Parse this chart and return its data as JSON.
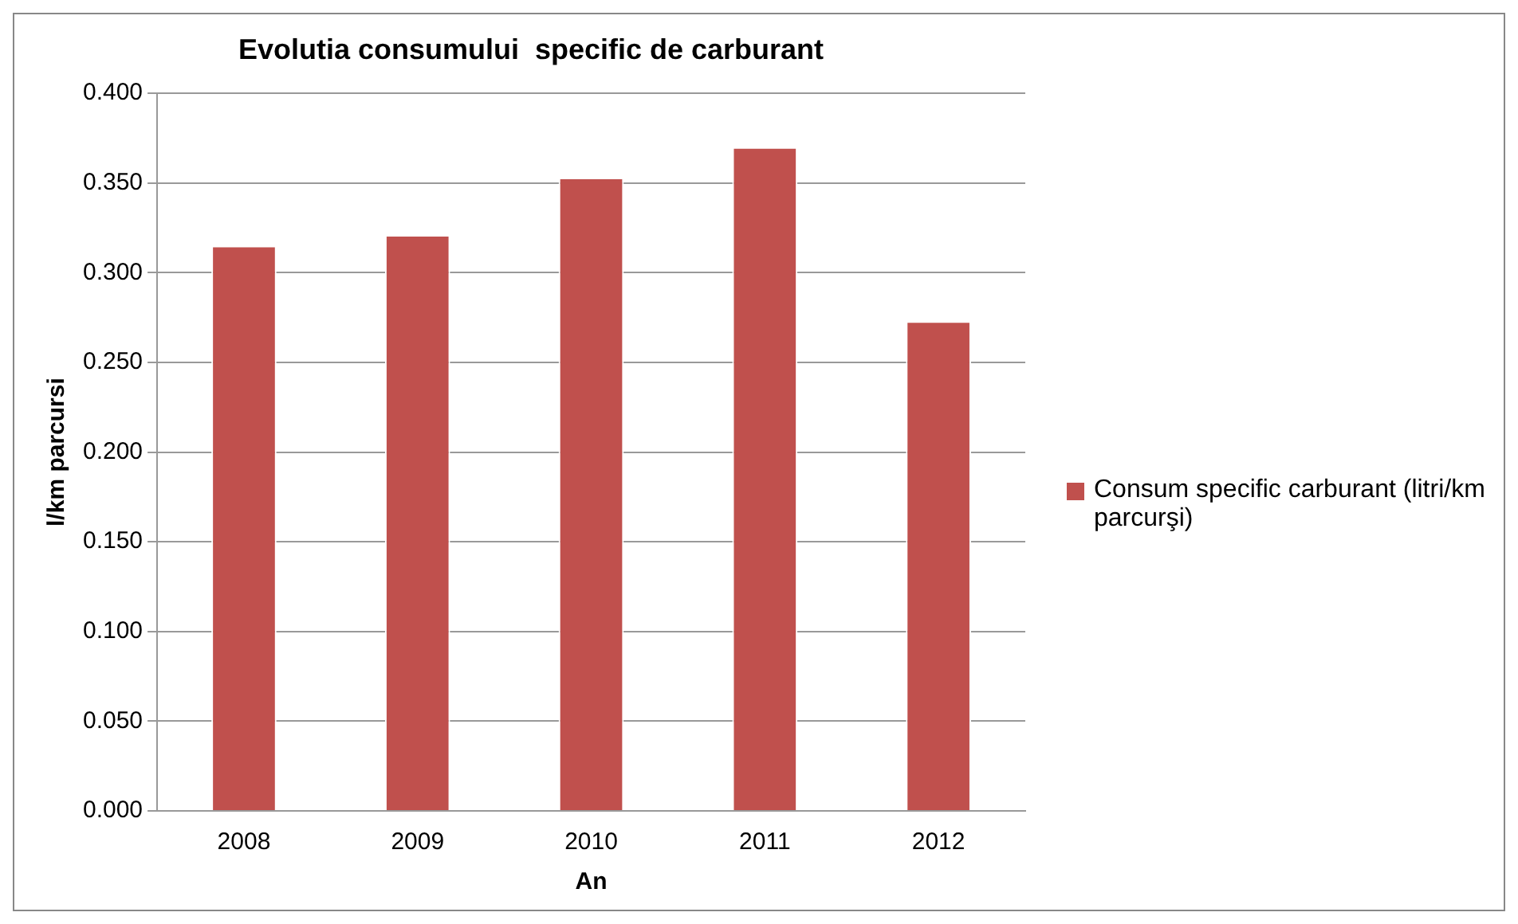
{
  "chart_data": {
    "type": "bar",
    "title": "Evolutia consumului  specific de carburant",
    "xlabel": "An",
    "ylabel": "l/km parcursi",
    "categories": [
      "2008",
      "2009",
      "2010",
      "2011",
      "2012"
    ],
    "series": [
      {
        "name": "Consum specific carburant (litri/km parcurşi)",
        "color": "#c0504d",
        "values": [
          0.315,
          0.321,
          0.353,
          0.37,
          0.273
        ]
      }
    ],
    "ylim": [
      0,
      0.4
    ],
    "yticks": [
      {
        "value": 0,
        "label": "0.000"
      },
      {
        "value": 0.05,
        "label": "0.050"
      },
      {
        "value": 0.1,
        "label": "0.100"
      },
      {
        "value": 0.15,
        "label": "0.150"
      },
      {
        "value": 0.2,
        "label": "0.200"
      },
      {
        "value": 0.25,
        "label": "0.250"
      },
      {
        "value": 0.3,
        "label": "0.300"
      },
      {
        "value": 0.35,
        "label": "0.350"
      },
      {
        "value": 0.4,
        "label": "0.400"
      }
    ],
    "grid": "y",
    "legend": "right"
  }
}
